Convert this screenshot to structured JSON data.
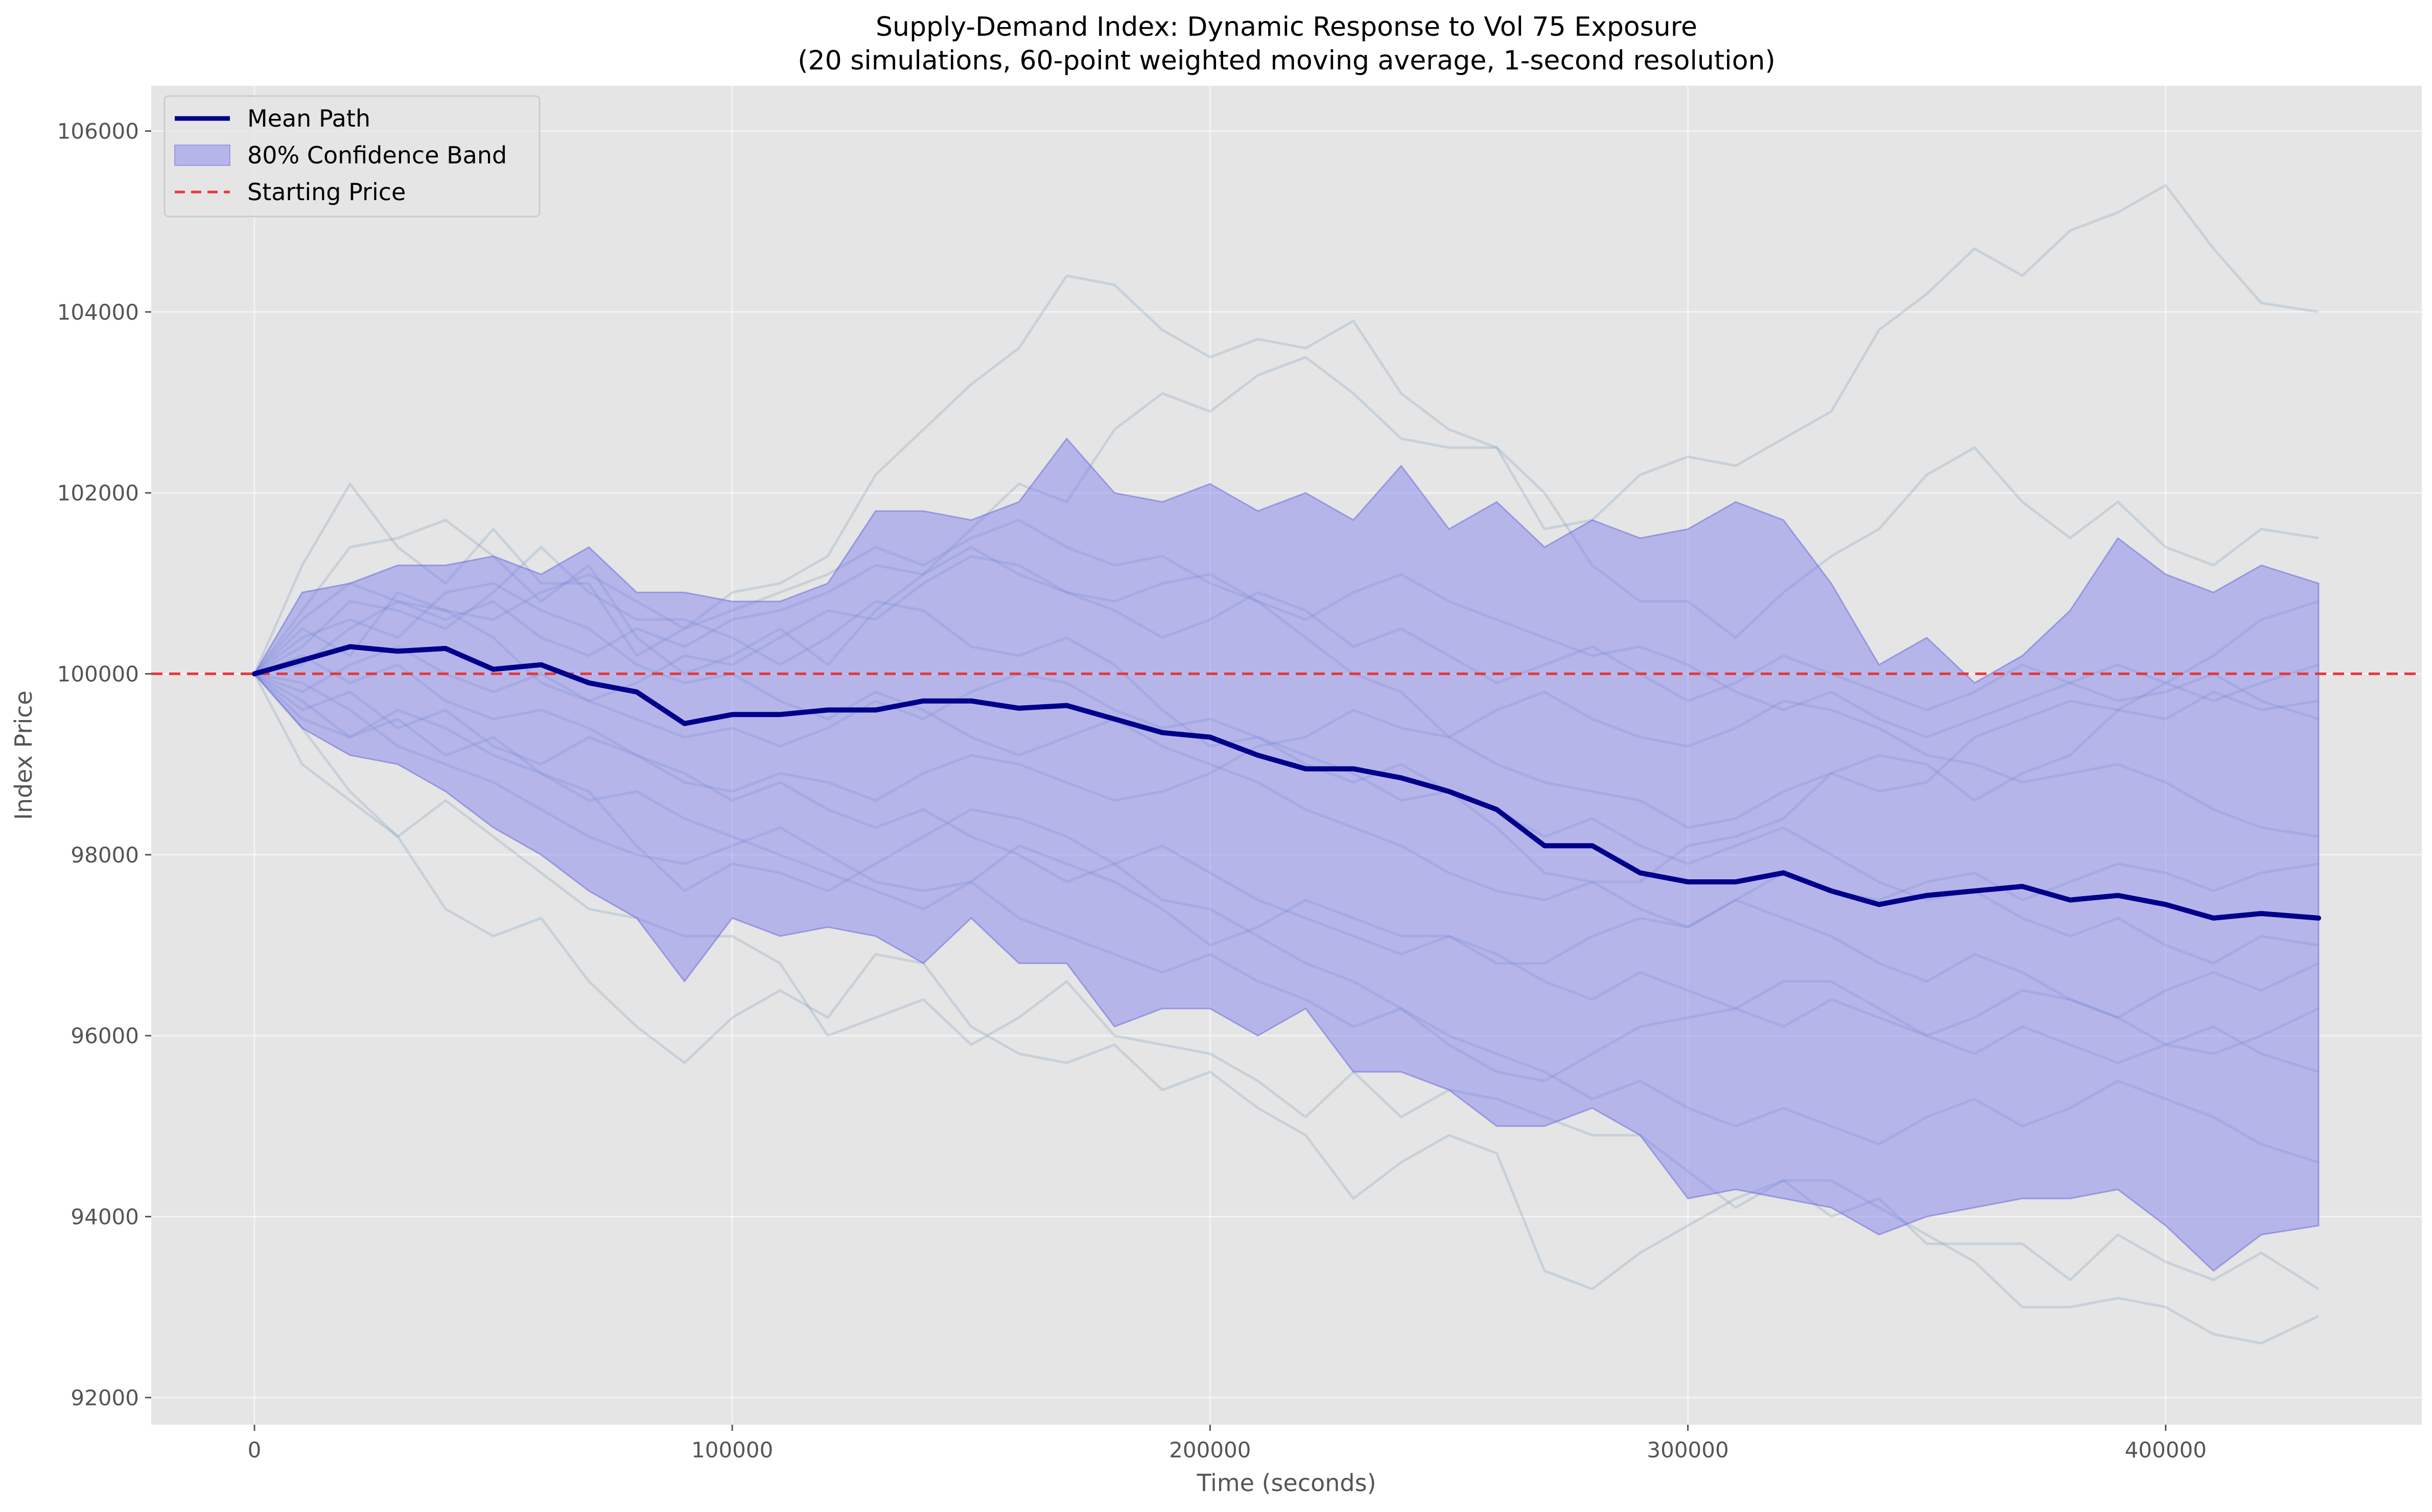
{
  "chart_data": {
    "type": "line",
    "title": "Supply-Demand Index: Dynamic Response to Vol 75 Exposure",
    "subtitle": "(20 simulations, 60-point weighted moving average, 1-second resolution)",
    "xlabel": "Time (seconds)",
    "ylabel": "Index Price",
    "xlim": [
      -21600,
      453600
    ],
    "ylim": [
      91700,
      106500
    ],
    "x_ticks": [
      0,
      100000,
      200000,
      300000,
      400000
    ],
    "x_tick_labels": [
      "0",
      "100000",
      "200000",
      "300000",
      "400000"
    ],
    "y_ticks": [
      92000,
      94000,
      96000,
      98000,
      100000,
      102000,
      104000,
      106000
    ],
    "y_tick_labels": [
      "92000",
      "94000",
      "96000",
      "98000",
      "100000",
      "102000",
      "104000",
      "106000"
    ],
    "grid": true,
    "legend_position": "top-left",
    "legend": [
      "Mean Path",
      "80% Confidence Band",
      "Starting Price"
    ],
    "colors": {
      "background": "#e5e5e5",
      "mean_path": "#00008b",
      "confidence_band": "#7b7bf0",
      "starting_price": "#e8383d",
      "simulations": "#4a7ba6"
    },
    "starting_price": 100000,
    "x": [
      0,
      10000,
      20000,
      30000,
      40000,
      50000,
      60000,
      70000,
      80000,
      90000,
      100000,
      110000,
      120000,
      130000,
      140000,
      150000,
      160000,
      170000,
      180000,
      190000,
      200000,
      210000,
      220000,
      230000,
      240000,
      250000,
      260000,
      270000,
      280000,
      290000,
      300000,
      310000,
      320000,
      330000,
      340000,
      350000,
      360000,
      370000,
      380000,
      390000,
      400000,
      410000,
      420000,
      432000
    ],
    "series": [
      {
        "name": "Mean Path",
        "values": [
          100000,
          100150,
          100300,
          100250,
          100280,
          100050,
          100100,
          99900,
          99800,
          99450,
          99550,
          99550,
          99600,
          99600,
          99700,
          99700,
          99620,
          99650,
          99500,
          99350,
          99300,
          99100,
          98950,
          98950,
          98850,
          98700,
          98500,
          98100,
          98100,
          97800,
          97700,
          97700,
          97800,
          97600,
          97450,
          97550,
          97600,
          97650,
          97500,
          97550,
          97450,
          97300,
          97350,
          97300
        ]
      },
      {
        "name": "80% Confidence Band (upper)",
        "values": [
          100000,
          100900,
          101000,
          101200,
          101200,
          101300,
          101100,
          101400,
          100900,
          100900,
          100800,
          100800,
          101000,
          101800,
          101800,
          101700,
          101900,
          102600,
          102000,
          101900,
          102100,
          101800,
          102000,
          101700,
          102300,
          101600,
          101900,
          101400,
          101700,
          101500,
          101600,
          101900,
          101700,
          101000,
          100100,
          100400,
          99900,
          100200,
          100700,
          101500,
          101100,
          100900,
          101200,
          101000
        ]
      },
      {
        "name": "80% Confidence Band (lower)",
        "values": [
          100000,
          99400,
          99100,
          99000,
          98700,
          98300,
          98000,
          97600,
          97300,
          96600,
          97300,
          97100,
          97200,
          97100,
          96800,
          97300,
          96800,
          96800,
          96100,
          96300,
          96300,
          96000,
          96300,
          95600,
          95600,
          95400,
          95000,
          95000,
          95200,
          94900,
          94200,
          94300,
          94200,
          94100,
          93800,
          94000,
          94100,
          94200,
          94200,
          94300,
          93900,
          93400,
          93800,
          93900
        ]
      }
    ],
    "simulation_paths": [
      [
        100000,
        101200,
        102100,
        101400,
        101000,
        101600,
        101000,
        101000,
        100200,
        100500,
        100900,
        101000,
        101300,
        102200,
        102700,
        103200,
        103600,
        104400,
        104300,
        103800,
        103500,
        103700,
        103600,
        103900,
        103100,
        102700,
        102500,
        101600,
        101700,
        102200,
        102400,
        102300,
        102600,
        102900,
        103800,
        104200,
        104700,
        104400,
        104900,
        105100,
        105400,
        104700,
        104100,
        104000
      ],
      [
        100000,
        99000,
        98600,
        98200,
        97400,
        97100,
        97300,
        96600,
        96100,
        95700,
        96200,
        96500,
        96200,
        96900,
        96800,
        96100,
        95800,
        95700,
        95900,
        95400,
        95600,
        95200,
        94900,
        94200,
        94600,
        94900,
        94700,
        93400,
        93200,
        93600,
        93900,
        94200,
        94400,
        94400,
        94100,
        93800,
        93500,
        93000,
        93000,
        93100,
        93000,
        92700,
        92600,
        92900
      ],
      [
        100000,
        100700,
        101400,
        101500,
        101700,
        101300,
        100800,
        101200,
        100400,
        100000,
        100200,
        100500,
        100100,
        100700,
        101100,
        101600,
        102100,
        101900,
        102700,
        103100,
        102900,
        103300,
        103500,
        103100,
        102600,
        102500,
        102500,
        102000,
        101200,
        100800,
        100800,
        100400,
        100900,
        101300,
        101600,
        102200,
        102500,
        101900,
        101500,
        101900,
        101400,
        101200,
        101600,
        101500
      ],
      [
        100000,
        99400,
        98700,
        98200,
        98600,
        98200,
        97800,
        97400,
        97300,
        97100,
        97100,
        96800,
        96000,
        96200,
        96400,
        95900,
        96200,
        96600,
        96000,
        95900,
        95800,
        95500,
        95100,
        95600,
        95100,
        95400,
        95300,
        95100,
        94900,
        94900,
        94500,
        94100,
        94400,
        94000,
        94200,
        93700,
        93700,
        93700,
        93300,
        93800,
        93500,
        93300,
        93600,
        93200
      ],
      [
        100000,
        100300,
        100800,
        100700,
        100500,
        100900,
        101400,
        100900,
        100600,
        100600,
        100400,
        100100,
        100400,
        100800,
        100700,
        100300,
        100200,
        100400,
        100100,
        99600,
        99200,
        99300,
        99100,
        98900,
        98600,
        98700,
        98300,
        97800,
        97700,
        97700,
        98100,
        98200,
        98400,
        98900,
        99100,
        99000,
        98600,
        98900,
        99100,
        99600,
        99900,
        100200,
        100600,
        100800
      ],
      [
        100000,
        99700,
        99300,
        99600,
        99400,
        99100,
        98900,
        98700,
        98100,
        97600,
        97900,
        97800,
        97600,
        97900,
        98200,
        98500,
        98400,
        98200,
        97900,
        97500,
        97400,
        97100,
        96800,
        96600,
        96300,
        95900,
        95600,
        95500,
        95800,
        96100,
        96200,
        96300,
        96600,
        96600,
        96300,
        96000,
        96200,
        96500,
        96400,
        96200,
        95900,
        95800,
        96000,
        96300
      ],
      [
        100000,
        100500,
        100200,
        100900,
        100700,
        100400,
        99900,
        99700,
        99900,
        100200,
        100100,
        100400,
        100700,
        100600,
        101000,
        101300,
        101200,
        100900,
        100800,
        101000,
        101100,
        100800,
        100400,
        100000,
        99800,
        99300,
        99000,
        98800,
        98700,
        98600,
        98300,
        98400,
        98700,
        98900,
        98700,
        98800,
        99300,
        99500,
        99700,
        99600,
        99500,
        99800,
        99600,
        99700
      ],
      [
        100000,
        99900,
        99600,
        99200,
        99000,
        98800,
        98500,
        98200,
        98000,
        97900,
        98100,
        98300,
        98000,
        97700,
        97600,
        97700,
        98100,
        97900,
        97700,
        97400,
        97000,
        97200,
        97500,
        97300,
        97100,
        97100,
        96800,
        96800,
        97100,
        97300,
        97200,
        97500,
        97800,
        97600,
        97500,
        97700,
        97800,
        97500,
        97700,
        97900,
        97800,
        97600,
        97800,
        97900
      ],
      [
        100000,
        100200,
        99900,
        100100,
        99700,
        99500,
        99600,
        99400,
        99100,
        98800,
        98700,
        98900,
        98800,
        98600,
        98900,
        99100,
        99000,
        98800,
        98600,
        98700,
        98900,
        99200,
        99300,
        99600,
        99400,
        99300,
        99600,
        99800,
        99500,
        99300,
        99200,
        99400,
        99700,
        99600,
        99400,
        99100,
        99000,
        98800,
        98900,
        99000,
        98800,
        98500,
        98300,
        98200
      ],
      [
        100000,
        100600,
        101000,
        100800,
        100600,
        100800,
        100400,
        100200,
        100500,
        100300,
        100600,
        100700,
        100900,
        101200,
        101100,
        101400,
        101100,
        100900,
        100700,
        100400,
        100600,
        100900,
        100700,
        100300,
        100500,
        100200,
        99900,
        100100,
        100300,
        100000,
        99700,
        99900,
        100200,
        100000,
        99800,
        99600,
        99800,
        100100,
        99900,
        99700,
        99800,
        100000,
        99700,
        99500
      ],
      [
        100000,
        99500,
        99300,
        99500,
        99100,
        99300,
        98900,
        98600,
        98700,
        98400,
        98200,
        98000,
        97800,
        97600,
        97400,
        97700,
        97300,
        97100,
        96900,
        96700,
        96900,
        96600,
        96400,
        96100,
        96300,
        96000,
        95800,
        95600,
        95300,
        95500,
        95200,
        95000,
        95200,
        95000,
        94800,
        95100,
        95300,
        95000,
        95200,
        95500,
        95300,
        95100,
        94800,
        94600
      ],
      [
        100000,
        100400,
        100600,
        100400,
        100900,
        101000,
        100700,
        100500,
        100100,
        99900,
        100000,
        99700,
        99500,
        99800,
        99600,
        99300,
        99100,
        99300,
        99500,
        99200,
        99000,
        98800,
        98500,
        98300,
        98100,
        97800,
        97600,
        97500,
        97700,
        97400,
        97200,
        97500,
        97300,
        97100,
        96800,
        96600,
        96900,
        96700,
        96400,
        96200,
        96500,
        96700,
        96500,
        96800
      ],
      [
        100000,
        99800,
        100100,
        100300,
        100000,
        99800,
        100000,
        99700,
        99500,
        99300,
        99400,
        99200,
        99400,
        99700,
        99500,
        99800,
        100000,
        99900,
        99600,
        99400,
        99500,
        99300,
        99000,
        98800,
        99000,
        98700,
        98500,
        98200,
        98400,
        98100,
        97900,
        98100,
        98300,
        98000,
        97700,
        97500,
        97600,
        97300,
        97100,
        97300,
        97000,
        96800,
        97100,
        97000
      ],
      [
        100000,
        100100,
        100500,
        100800,
        100700,
        100600,
        100900,
        101100,
        100800,
        100500,
        100700,
        100900,
        101100,
        101400,
        101200,
        101500,
        101700,
        101400,
        101200,
        101300,
        101000,
        100800,
        100600,
        100900,
        101100,
        100800,
        100600,
        100400,
        100200,
        100300,
        100100,
        99800,
        99600,
        99800,
        99500,
        99300,
        99500,
        99700,
        99900,
        100100,
        99900,
        99700,
        99900,
        100100
      ],
      [
        100000,
        99600,
        99800,
        99400,
        99600,
        99200,
        99000,
        99300,
        99100,
        98900,
        98600,
        98800,
        98500,
        98300,
        98500,
        98200,
        98000,
        97700,
        97900,
        98100,
        97800,
        97500,
        97300,
        97100,
        96900,
        97100,
        96900,
        96600,
        96400,
        96700,
        96500,
        96300,
        96100,
        96400,
        96200,
        96000,
        95800,
        96100,
        95900,
        95700,
        95900,
        96100,
        95800,
        95600
      ]
    ]
  }
}
